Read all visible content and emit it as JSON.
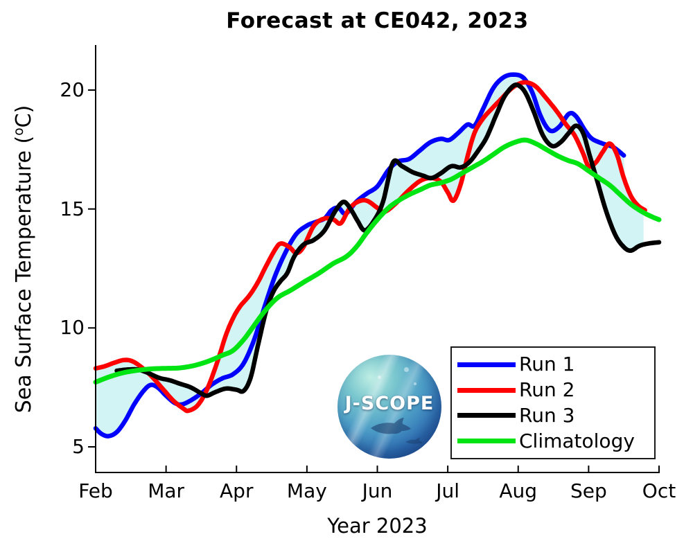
{
  "title": "Forecast at CE042, 2023",
  "logo": {
    "text": "J-SCOPE"
  },
  "chart_data": {
    "type": "line",
    "title": "Forecast at CE042, 2023",
    "xlabel": "Year 2023",
    "ylabel": "Sea Surface Temperature (°C)",
    "ylabel_parts": {
      "prefix": "Sea Surface Temperature (",
      "sup": "o",
      "suffix": "C)"
    },
    "grid": false,
    "legend_position": "lower right",
    "xlim_months": [
      2,
      10
    ],
    "ylim": [
      4,
      21.8
    ],
    "x_ticks": {
      "values": [
        2,
        3,
        4,
        5,
        6,
        7,
        8,
        9,
        10
      ],
      "labels": [
        "Feb",
        "Mar",
        "Apr",
        "May",
        "Jun",
        "Jul",
        "Aug",
        "Sep",
        "Oct"
      ]
    },
    "y_ticks": {
      "values": [
        5,
        10,
        15,
        20
      ],
      "labels": [
        "5",
        "10",
        "15",
        "20"
      ]
    },
    "envelope": {
      "color": "#d2f4f5",
      "description": "min-max range across Run 1-3",
      "x_end_month": 9.78
    },
    "axis_color": "#000000",
    "series": [
      {
        "name": "Run 1",
        "color": "#0000ff",
        "role": "run",
        "points": [
          [
            2.0,
            5.78
          ],
          [
            2.08,
            5.55
          ],
          [
            2.18,
            5.45
          ],
          [
            2.3,
            5.62
          ],
          [
            2.42,
            6.1
          ],
          [
            2.55,
            6.8
          ],
          [
            2.68,
            7.35
          ],
          [
            2.78,
            7.6
          ],
          [
            2.88,
            7.5
          ],
          [
            3.0,
            7.15
          ],
          [
            3.12,
            6.85
          ],
          [
            3.22,
            6.78
          ],
          [
            3.35,
            6.95
          ],
          [
            3.5,
            7.25
          ],
          [
            3.65,
            7.62
          ],
          [
            3.8,
            7.88
          ],
          [
            3.95,
            8.05
          ],
          [
            4.1,
            8.5
          ],
          [
            4.25,
            9.5
          ],
          [
            4.4,
            10.9
          ],
          [
            4.55,
            12.2
          ],
          [
            4.7,
            13.2
          ],
          [
            4.85,
            13.95
          ],
          [
            5.0,
            14.3
          ],
          [
            5.12,
            14.45
          ],
          [
            5.25,
            14.6
          ],
          [
            5.35,
            14.95
          ],
          [
            5.45,
            15.05
          ],
          [
            5.55,
            14.8
          ],
          [
            5.7,
            15.3
          ],
          [
            5.85,
            15.65
          ],
          [
            6.0,
            15.95
          ],
          [
            6.16,
            16.65
          ],
          [
            6.3,
            17.0
          ],
          [
            6.45,
            17.1
          ],
          [
            6.6,
            17.45
          ],
          [
            6.75,
            17.8
          ],
          [
            6.9,
            17.95
          ],
          [
            7.02,
            17.9
          ],
          [
            7.15,
            18.2
          ],
          [
            7.28,
            18.55
          ],
          [
            7.38,
            18.5
          ],
          [
            7.5,
            19.2
          ],
          [
            7.65,
            20.1
          ],
          [
            7.8,
            20.55
          ],
          [
            7.95,
            20.65
          ],
          [
            8.08,
            20.5
          ],
          [
            8.2,
            19.9
          ],
          [
            8.32,
            18.9
          ],
          [
            8.45,
            18.3
          ],
          [
            8.58,
            18.45
          ],
          [
            8.72,
            19.0
          ],
          [
            8.82,
            18.9
          ],
          [
            8.95,
            18.3
          ],
          [
            9.05,
            17.95
          ],
          [
            9.2,
            17.75
          ],
          [
            9.35,
            17.6
          ],
          [
            9.5,
            17.25
          ]
        ]
      },
      {
        "name": "Run 2",
        "color": "#ff0000",
        "role": "run",
        "points": [
          [
            2.0,
            8.3
          ],
          [
            2.12,
            8.38
          ],
          [
            2.25,
            8.52
          ],
          [
            2.4,
            8.65
          ],
          [
            2.52,
            8.6
          ],
          [
            2.65,
            8.35
          ],
          [
            2.8,
            7.95
          ],
          [
            2.95,
            7.45
          ],
          [
            3.1,
            6.95
          ],
          [
            3.25,
            6.6
          ],
          [
            3.32,
            6.52
          ],
          [
            3.45,
            6.75
          ],
          [
            3.58,
            7.4
          ],
          [
            3.72,
            8.5
          ],
          [
            3.85,
            9.7
          ],
          [
            3.95,
            10.4
          ],
          [
            4.05,
            10.9
          ],
          [
            4.18,
            11.35
          ],
          [
            4.3,
            11.9
          ],
          [
            4.42,
            12.6
          ],
          [
            4.55,
            13.3
          ],
          [
            4.63,
            13.55
          ],
          [
            4.75,
            13.4
          ],
          [
            4.85,
            13.15
          ],
          [
            4.95,
            13.4
          ],
          [
            5.1,
            14.3
          ],
          [
            5.25,
            14.6
          ],
          [
            5.38,
            14.55
          ],
          [
            5.48,
            14.4
          ],
          [
            5.6,
            15.0
          ],
          [
            5.72,
            15.3
          ],
          [
            5.85,
            15.35
          ],
          [
            6.0,
            15.05
          ],
          [
            6.1,
            14.88
          ],
          [
            6.25,
            15.2
          ],
          [
            6.45,
            15.8
          ],
          [
            6.62,
            16.2
          ],
          [
            6.77,
            16.3
          ],
          [
            6.9,
            16.15
          ],
          [
            7.0,
            15.7
          ],
          [
            7.08,
            15.35
          ],
          [
            7.18,
            16.0
          ],
          [
            7.28,
            17.2
          ],
          [
            7.38,
            18.2
          ],
          [
            7.5,
            18.8
          ],
          [
            7.62,
            19.2
          ],
          [
            7.75,
            19.6
          ],
          [
            7.88,
            20.0
          ],
          [
            8.0,
            20.25
          ],
          [
            8.12,
            20.32
          ],
          [
            8.25,
            20.15
          ],
          [
            8.4,
            19.65
          ],
          [
            8.55,
            19.1
          ],
          [
            8.68,
            18.55
          ],
          [
            8.8,
            18.1
          ],
          [
            8.92,
            17.35
          ],
          [
            9.0,
            16.8
          ],
          [
            9.1,
            16.95
          ],
          [
            9.2,
            17.4
          ],
          [
            9.3,
            17.75
          ],
          [
            9.4,
            17.3
          ],
          [
            9.5,
            16.3
          ],
          [
            9.6,
            15.55
          ],
          [
            9.7,
            15.15
          ],
          [
            9.8,
            14.95
          ]
        ]
      },
      {
        "name": "Run 3",
        "color": "#000000",
        "role": "run",
        "points": [
          [
            2.3,
            8.2
          ],
          [
            2.45,
            8.25
          ],
          [
            2.6,
            8.25
          ],
          [
            2.75,
            8.1
          ],
          [
            2.9,
            7.9
          ],
          [
            3.05,
            7.8
          ],
          [
            3.2,
            7.65
          ],
          [
            3.35,
            7.5
          ],
          [
            3.5,
            7.25
          ],
          [
            3.58,
            7.15
          ],
          [
            3.7,
            7.3
          ],
          [
            3.85,
            7.45
          ],
          [
            4.0,
            7.4
          ],
          [
            4.1,
            7.35
          ],
          [
            4.2,
            7.9
          ],
          [
            4.3,
            9.2
          ],
          [
            4.42,
            10.7
          ],
          [
            4.52,
            11.5
          ],
          [
            4.62,
            11.95
          ],
          [
            4.72,
            12.3
          ],
          [
            4.82,
            13.0
          ],
          [
            4.95,
            13.5
          ],
          [
            5.1,
            13.7
          ],
          [
            5.25,
            14.1
          ],
          [
            5.4,
            14.9
          ],
          [
            5.52,
            15.3
          ],
          [
            5.62,
            15.0
          ],
          [
            5.72,
            14.5
          ],
          [
            5.82,
            14.1
          ],
          [
            5.95,
            14.5
          ],
          [
            6.08,
            15.3
          ],
          [
            6.22,
            16.95
          ],
          [
            6.35,
            16.8
          ],
          [
            6.5,
            16.55
          ],
          [
            6.65,
            16.4
          ],
          [
            6.77,
            16.3
          ],
          [
            6.9,
            16.5
          ],
          [
            7.05,
            16.8
          ],
          [
            7.18,
            16.75
          ],
          [
            7.3,
            16.95
          ],
          [
            7.42,
            17.4
          ],
          [
            7.55,
            18.0
          ],
          [
            7.68,
            18.9
          ],
          [
            7.8,
            19.7
          ],
          [
            7.92,
            20.15
          ],
          [
            8.0,
            20.2
          ],
          [
            8.1,
            19.9
          ],
          [
            8.22,
            19.1
          ],
          [
            8.35,
            18.1
          ],
          [
            8.48,
            17.65
          ],
          [
            8.6,
            17.8
          ],
          [
            8.72,
            18.2
          ],
          [
            8.82,
            18.5
          ],
          [
            8.92,
            18.2
          ],
          [
            9.02,
            17.2
          ],
          [
            9.12,
            16.2
          ],
          [
            9.25,
            14.9
          ],
          [
            9.38,
            13.9
          ],
          [
            9.5,
            13.4
          ],
          [
            9.6,
            13.25
          ],
          [
            9.72,
            13.45
          ],
          [
            9.85,
            13.55
          ],
          [
            10.0,
            13.6
          ]
        ]
      },
      {
        "name": "Climatology",
        "color": "#00e414",
        "role": "climatology",
        "points": [
          [
            2.0,
            7.72
          ],
          [
            2.2,
            7.95
          ],
          [
            2.4,
            8.12
          ],
          [
            2.6,
            8.22
          ],
          [
            2.8,
            8.28
          ],
          [
            3.0,
            8.3
          ],
          [
            3.2,
            8.32
          ],
          [
            3.4,
            8.42
          ],
          [
            3.6,
            8.6
          ],
          [
            3.8,
            8.85
          ],
          [
            3.95,
            9.05
          ],
          [
            4.1,
            9.5
          ],
          [
            4.25,
            10.1
          ],
          [
            4.4,
            10.7
          ],
          [
            4.58,
            11.26
          ],
          [
            4.78,
            11.6
          ],
          [
            4.97,
            11.95
          ],
          [
            5.17,
            12.3
          ],
          [
            5.37,
            12.7
          ],
          [
            5.56,
            13.0
          ],
          [
            5.7,
            13.4
          ],
          [
            5.85,
            14.0
          ],
          [
            6.0,
            14.55
          ],
          [
            6.16,
            15.05
          ],
          [
            6.3,
            15.35
          ],
          [
            6.45,
            15.6
          ],
          [
            6.6,
            15.8
          ],
          [
            6.75,
            16.0
          ],
          [
            6.9,
            16.1
          ],
          [
            7.05,
            16.25
          ],
          [
            7.2,
            16.5
          ],
          [
            7.35,
            16.75
          ],
          [
            7.5,
            17.0
          ],
          [
            7.65,
            17.3
          ],
          [
            7.8,
            17.6
          ],
          [
            7.95,
            17.8
          ],
          [
            8.1,
            17.9
          ],
          [
            8.25,
            17.75
          ],
          [
            8.4,
            17.5
          ],
          [
            8.55,
            17.25
          ],
          [
            8.7,
            17.05
          ],
          [
            8.85,
            16.9
          ],
          [
            9.0,
            16.6
          ],
          [
            9.15,
            16.3
          ],
          [
            9.3,
            16.0
          ],
          [
            9.45,
            15.6
          ],
          [
            9.6,
            15.2
          ],
          [
            9.75,
            14.9
          ],
          [
            9.88,
            14.7
          ],
          [
            10.0,
            14.55
          ]
        ]
      }
    ]
  }
}
